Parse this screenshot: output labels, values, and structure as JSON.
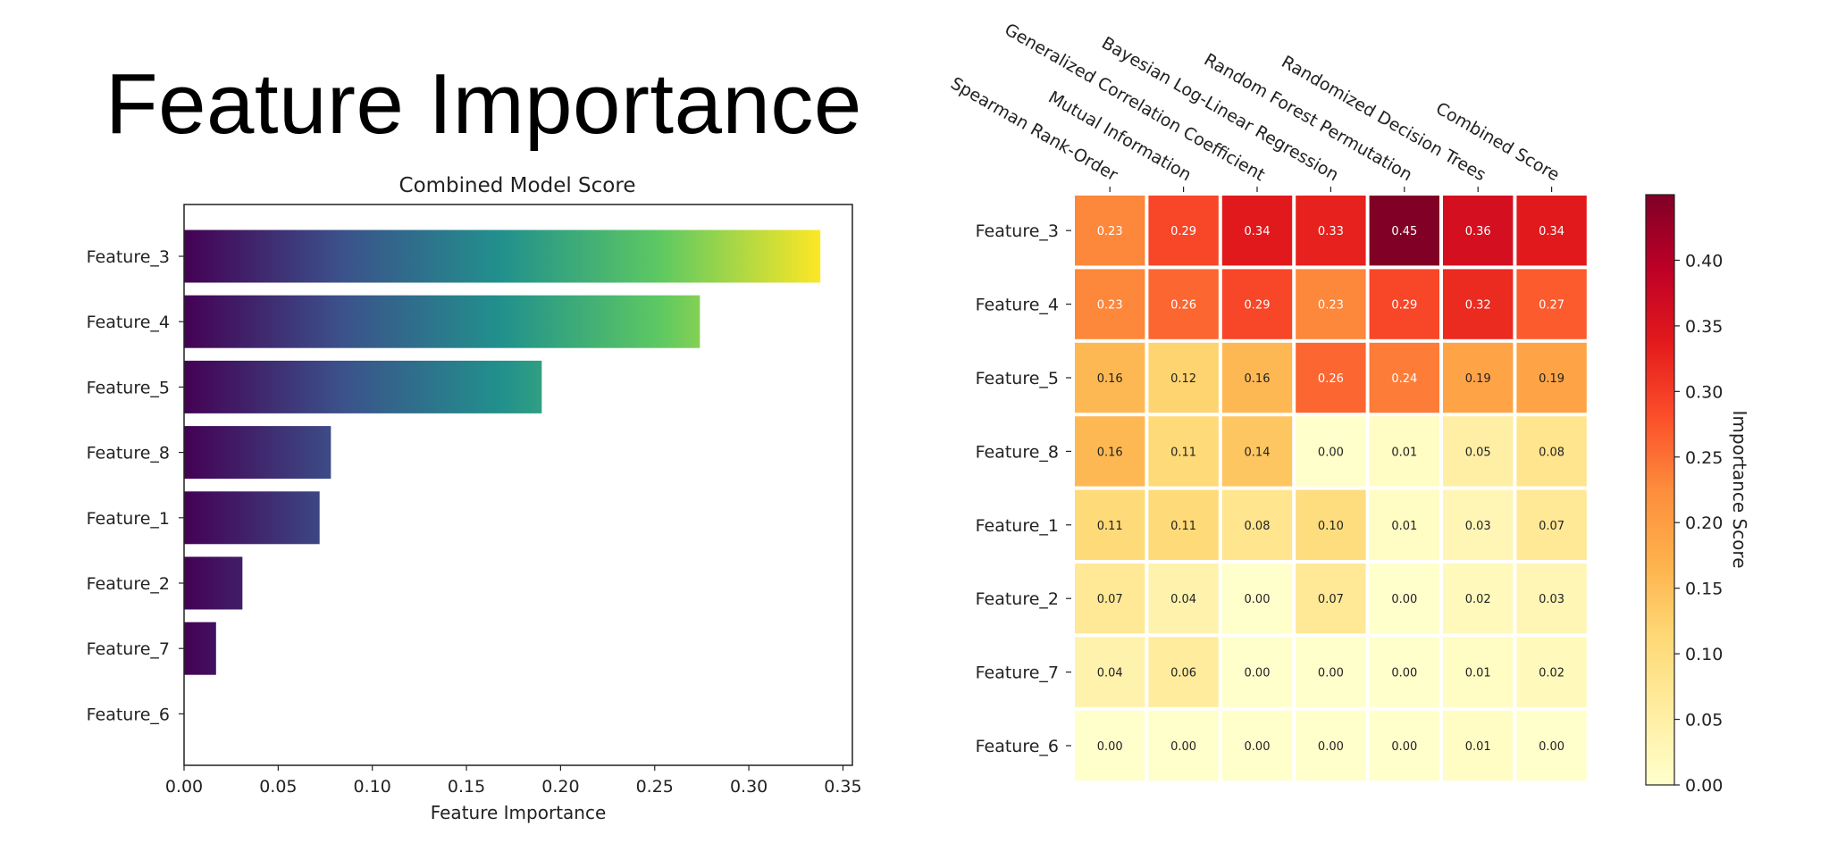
{
  "slide_title": "Feature Importance",
  "chart_data": [
    {
      "type": "bar",
      "orientation": "horizontal",
      "title": "Combined Model Score",
      "xlabel": "Feature Importance",
      "ylabel": "",
      "categories": [
        "Feature_3",
        "Feature_4",
        "Feature_5",
        "Feature_8",
        "Feature_1",
        "Feature_2",
        "Feature_7",
        "Feature_6"
      ],
      "values": [
        0.338,
        0.274,
        0.19,
        0.078,
        0.072,
        0.031,
        0.017,
        0.0
      ],
      "xlim": [
        0.0,
        0.355
      ],
      "xticks": [
        "0.00",
        "0.05",
        "0.10",
        "0.15",
        "0.20",
        "0.25",
        "0.30",
        "0.35"
      ],
      "colormap": "viridis gradient",
      "gradient_colors": [
        "#440154",
        "#3b528b",
        "#21918c",
        "#5ec962",
        "#fde725"
      ],
      "grid": false
    },
    {
      "type": "heatmap",
      "columns": [
        "Spearman Rank-Order",
        "Mutual Information",
        "Generalized Correlation Coefficient",
        "Bayesian Log-Linear Regression",
        "Random Forest Permutation",
        "Randomized Decision Trees",
        "Combined Score"
      ],
      "rows": [
        "Feature_3",
        "Feature_4",
        "Feature_5",
        "Feature_8",
        "Feature_1",
        "Feature_2",
        "Feature_7",
        "Feature_6"
      ],
      "values": [
        [
          0.23,
          0.29,
          0.34,
          0.33,
          0.45,
          0.36,
          0.34
        ],
        [
          0.23,
          0.26,
          0.29,
          0.23,
          0.29,
          0.32,
          0.27
        ],
        [
          0.16,
          0.12,
          0.16,
          0.26,
          0.24,
          0.19,
          0.19
        ],
        [
          0.16,
          0.11,
          0.14,
          0.0,
          0.01,
          0.05,
          0.08
        ],
        [
          0.11,
          0.11,
          0.08,
          0.1,
          0.01,
          0.03,
          0.07
        ],
        [
          0.07,
          0.04,
          0.0,
          0.07,
          0.0,
          0.02,
          0.03
        ],
        [
          0.04,
          0.06,
          0.0,
          0.0,
          0.0,
          0.01,
          0.02
        ],
        [
          0.0,
          0.0,
          0.0,
          0.0,
          0.0,
          0.01,
          0.0
        ]
      ],
      "colormap": "YlOrRd",
      "colorbar_label": "Importance Score",
      "colorbar_range": [
        0.0,
        0.45
      ],
      "colorbar_ticks": [
        "0.00",
        "0.05",
        "0.10",
        "0.15",
        "0.20",
        "0.25",
        "0.30",
        "0.35",
        "0.40"
      ],
      "colors": [
        "#ffffcc",
        "#ffeda0",
        "#fed976",
        "#feb24c",
        "#fd8d3c",
        "#fc4e2a",
        "#e31a1c",
        "#bd0026",
        "#800026"
      ]
    }
  ]
}
